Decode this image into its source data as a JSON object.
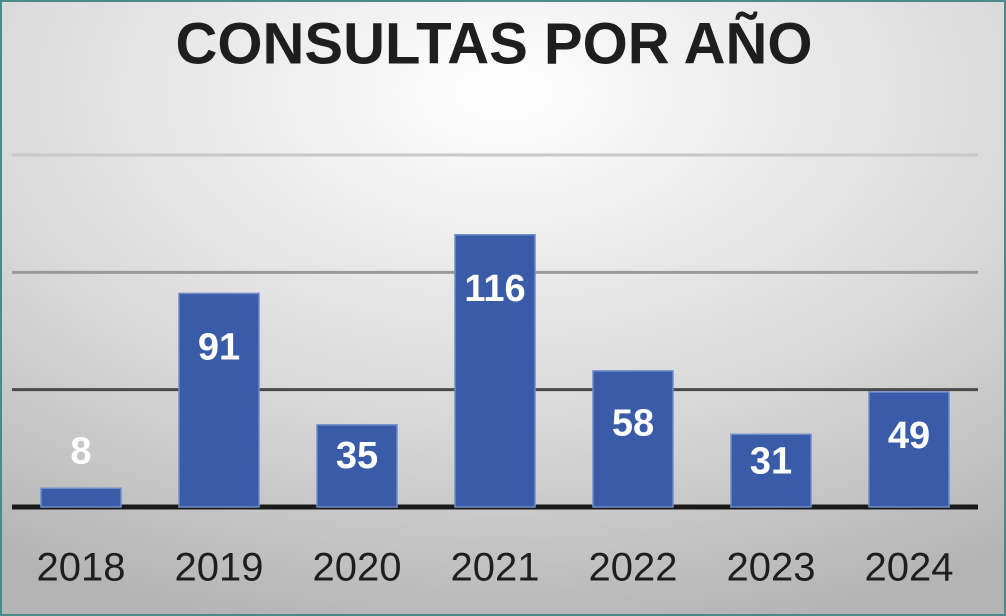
{
  "chart_data": {
    "type": "bar",
    "title": "CONSULTAS POR AÑO",
    "categories": [
      "2018",
      "2019",
      "2020",
      "2021",
      "2022",
      "2023",
      "2024"
    ],
    "values": [
      8,
      91,
      35,
      116,
      58,
      31,
      49
    ],
    "color": "#3a5ca8",
    "ylim": [
      0,
      150
    ],
    "yticks": [
      0,
      50,
      100,
      150
    ],
    "grid": true
  }
}
